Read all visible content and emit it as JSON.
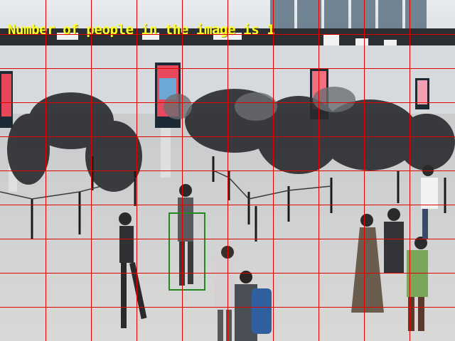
{
  "annotation": {
    "count_text": "Number of people in the image is 1",
    "text_color": "#ffff22"
  },
  "grid": {
    "color": "#e00000",
    "columns": 10,
    "rows": 10
  },
  "detections": [
    {
      "label": "person",
      "color": "#1f8a1f"
    }
  ],
  "scene": {
    "description_hint": "airport security hall with queue barriers and travelers"
  }
}
